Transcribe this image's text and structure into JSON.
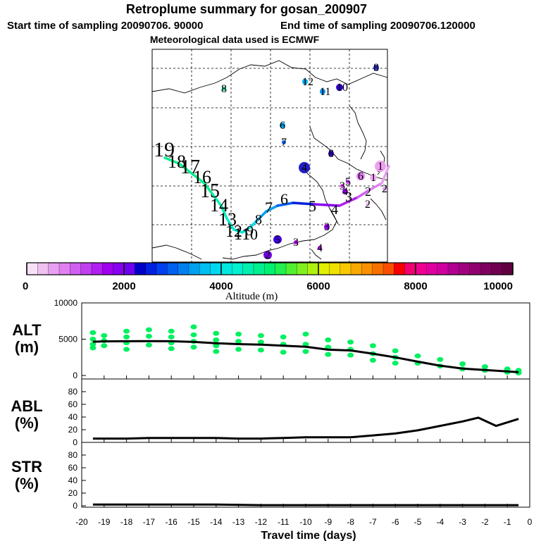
{
  "header": {
    "title": "Retroplume summary for gosan_200907",
    "start_label": "Start time of sampling 20090706. 90000",
    "end_label": "End time of sampling 20090706.120000",
    "met_label": "Meteorological data used is ECMWF"
  },
  "map": {
    "trajectory_labels": [
      {
        "text": "19",
        "day": -19
      },
      {
        "text": "18",
        "day": -18
      },
      {
        "text": "17",
        "day": -17
      },
      {
        "text": "16",
        "day": -16
      },
      {
        "text": "15",
        "day": -15
      },
      {
        "text": "14",
        "day": -14
      },
      {
        "text": "13",
        "day": -13
      },
      {
        "text": "12",
        "day": -12
      },
      {
        "text": "11",
        "day": -11
      },
      {
        "text": "10",
        "day": -10
      },
      {
        "text": "9",
        "day": -9
      },
      {
        "text": "8",
        "day": -8
      },
      {
        "text": "7",
        "day": -7
      },
      {
        "text": "6",
        "day": -6
      },
      {
        "text": "5",
        "day": -5
      },
      {
        "text": "4",
        "day": -4
      },
      {
        "text": "3",
        "day": -3
      },
      {
        "text": "2",
        "day": -2
      },
      {
        "text": "1",
        "day": -1
      }
    ],
    "cluster_labels": [
      "8",
      "8",
      "12",
      "11",
      "10",
      "6",
      "7",
      "8",
      "4",
      "5",
      "3",
      "2",
      "1",
      "3",
      "4",
      "5",
      "6",
      "3",
      "1",
      "2",
      "4",
      "2"
    ]
  },
  "colorbar": {
    "ticks": [
      "0",
      "2000",
      "4000",
      "6000",
      "8000",
      "10000"
    ],
    "label": "Altitude (m)",
    "colors": [
      "#f8e0f8",
      "#f0c0f0",
      "#e8a0f0",
      "#e080f0",
      "#d060f0",
      "#c040f0",
      "#b020f0",
      "#a000f0",
      "#8800f0",
      "#7000f0",
      "#0000c8",
      "#0020e0",
      "#0040f0",
      "#0060f0",
      "#0080f0",
      "#00a0f0",
      "#00c0f0",
      "#00d8f0",
      "#00e8e0",
      "#00f0d0",
      "#00f0b0",
      "#00f090",
      "#00f070",
      "#20f050",
      "#50f030",
      "#80f020",
      "#b0f010",
      "#e0f000",
      "#f0e000",
      "#f8c800",
      "#f8a800",
      "#f89000",
      "#f87000",
      "#f85000",
      "#f80000",
      "#f00070",
      "#f00090",
      "#e000a0",
      "#d000a0",
      "#b00090",
      "#a00080",
      "#900070",
      "#800060",
      "#700050",
      "#600040"
    ]
  },
  "chart_data": [
    {
      "type": "line",
      "panel": "ALT",
      "ylabel_line1": "ALT",
      "ylabel_line2": "(m)",
      "ylim": [
        0,
        10000
      ],
      "yticks": [
        "0",
        "5000",
        "10000"
      ],
      "x": [
        -19.5,
        -19,
        -18,
        -17,
        -16,
        -15,
        -14,
        -13,
        -12,
        -11,
        -10,
        -9,
        -8,
        -7,
        -6,
        -5,
        -4,
        -3,
        -2,
        -1,
        -0.5
      ],
      "series": [
        {
          "name": "mean altitude",
          "values": [
            4650,
            4700,
            4720,
            4730,
            4720,
            4620,
            4450,
            4320,
            4250,
            4100,
            3950,
            3550,
            3450,
            3000,
            2500,
            1900,
            1350,
            950,
            750,
            550,
            450
          ]
        }
      ],
      "scatter": {
        "name": "plume particles",
        "color": "#00f060",
        "x": [
          -19.5,
          -19.5,
          -19.5,
          -19.5,
          -19,
          -19,
          -19,
          -18,
          -18,
          -18,
          -18,
          -17,
          -17,
          -17,
          -16,
          -16,
          -16,
          -16,
          -15,
          -15,
          -15,
          -15,
          -14,
          -14,
          -14,
          -14,
          -13,
          -13,
          -13,
          -12,
          -12,
          -12,
          -11,
          -11,
          -11,
          -10,
          -10,
          -10,
          -9,
          -9,
          -9,
          -8,
          -8,
          -8,
          -7,
          -7,
          -7,
          -6,
          -6,
          -6,
          -5,
          -5,
          -4,
          -4,
          -3,
          -3,
          -2,
          -2,
          -1,
          -1,
          -0.5,
          -0.5
        ],
        "y": [
          5900,
          5000,
          4300,
          3800,
          5500,
          4800,
          4100,
          6100,
          5300,
          4500,
          3600,
          6300,
          5400,
          4200,
          6100,
          5300,
          4500,
          3700,
          6700,
          5600,
          4700,
          3900,
          5800,
          4900,
          4100,
          3300,
          5700,
          4700,
          3600,
          5500,
          4600,
          3500,
          5300,
          4300,
          3200,
          5700,
          4300,
          3300,
          4900,
          3900,
          2900,
          4600,
          3600,
          2800,
          4100,
          3000,
          2100,
          3400,
          2500,
          1700,
          2700,
          1700,
          2200,
          1300,
          1600,
          900,
          1200,
          700,
          900,
          450,
          700,
          350
        ]
      }
    },
    {
      "type": "line",
      "panel": "ABL",
      "ylabel_line1": "ABL",
      "ylabel_line2": "(%)",
      "ylim": [
        0,
        100
      ],
      "yticks": [
        "0",
        "20",
        "40",
        "60",
        "80"
      ],
      "x": [
        -19.5,
        -19,
        -18,
        -17,
        -16,
        -15,
        -14,
        -13,
        -12,
        -11,
        -10,
        -9,
        -8,
        -7,
        -6,
        -5,
        -4,
        -3,
        -2.3,
        -1.5,
        -0.5
      ],
      "series": [
        {
          "name": "ABL fraction",
          "values": [
            6,
            6,
            6,
            7,
            7,
            7,
            7,
            6,
            6,
            7,
            8,
            8,
            8,
            11,
            14,
            19,
            26,
            33,
            39,
            26,
            37
          ]
        }
      ]
    },
    {
      "type": "line",
      "panel": "STR",
      "ylabel_line1": "STR",
      "ylabel_line2": "(%)",
      "ylim": [
        0,
        100
      ],
      "yticks": [
        "0",
        "20",
        "40",
        "60",
        "80"
      ],
      "xlabel": "Travel time (days)",
      "xlim": [
        -20,
        0
      ],
      "xticks": [
        "-20",
        "-19",
        "-18",
        "-17",
        "-16",
        "-15",
        "-14",
        "-13",
        "-12",
        "-11",
        "-10",
        "-9",
        "-8",
        "-7",
        "-6",
        "-5",
        "-4",
        "-3",
        "-2",
        "-1",
        "0"
      ],
      "x": [
        -19.5,
        -18,
        -16,
        -14,
        -12,
        -10,
        -8,
        -6,
        -4,
        -2,
        -0.5
      ],
      "series": [
        {
          "name": "stratospheric fraction",
          "values": [
            2,
            2,
            2,
            2,
            1,
            1,
            1,
            1,
            1,
            1,
            1
          ]
        }
      ]
    }
  ]
}
